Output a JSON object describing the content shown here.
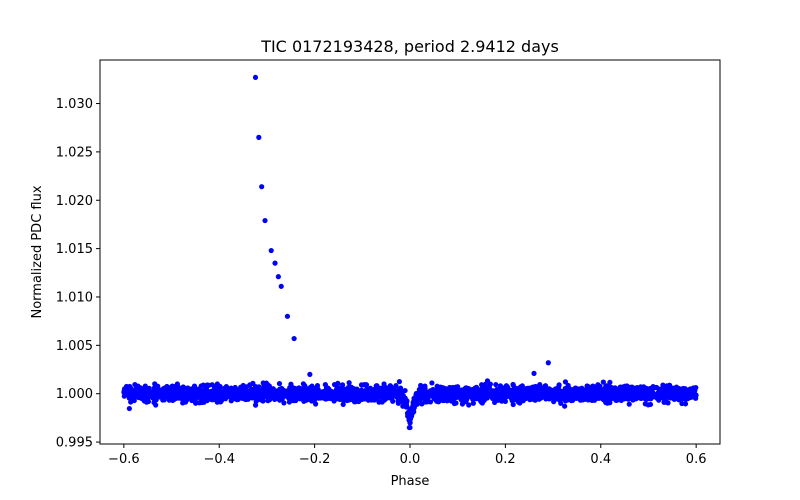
{
  "chart_data": {
    "type": "scatter",
    "title": "TIC 0172193428, period 2.9412 days",
    "xlabel": "Phase",
    "ylabel": "Normalized PDC flux",
    "xlim": [
      -0.65,
      0.65
    ],
    "ylim": [
      0.9948,
      1.0345
    ],
    "xticks": [
      -0.6,
      -0.4,
      -0.2,
      0.0,
      0.2,
      0.4,
      0.6
    ],
    "xtick_labels": [
      "−0.6",
      "−0.4",
      "−0.2",
      "0.0",
      "0.2",
      "0.4",
      "0.6"
    ],
    "yticks": [
      0.995,
      1.0,
      1.005,
      1.01,
      1.015,
      1.02,
      1.025,
      1.03
    ],
    "ytick_labels": [
      "0.995",
      "1.000",
      "1.005",
      "1.010",
      "1.015",
      "1.020",
      "1.025",
      "1.030"
    ],
    "grid": false,
    "marker_color": "#0000ff",
    "flare_points": [
      {
        "x": -0.324,
        "y": 1.0327
      },
      {
        "x": -0.317,
        "y": 1.0265
      },
      {
        "x": -0.311,
        "y": 1.0214
      },
      {
        "x": -0.304,
        "y": 1.0179
      },
      {
        "x": -0.291,
        "y": 1.0148
      },
      {
        "x": -0.283,
        "y": 1.0135
      },
      {
        "x": -0.276,
        "y": 1.0121
      },
      {
        "x": -0.27,
        "y": 1.0111
      },
      {
        "x": -0.257,
        "y": 1.008
      },
      {
        "x": -0.243,
        "y": 1.0057
      }
    ],
    "notable_points": [
      {
        "x": 0.29,
        "y": 1.0032
      },
      {
        "x": 0.26,
        "y": 1.0021
      },
      {
        "x": -0.21,
        "y": 1.002
      },
      {
        "x": 0.0,
        "y": 0.9965
      }
    ],
    "baseline": {
      "x_range": [
        -0.6,
        0.6
      ],
      "center": 1.0,
      "scatter": 0.0004,
      "n_points": 2600,
      "transit": {
        "phase": 0.0,
        "depth": 0.0025,
        "half_width": 0.025
      }
    }
  }
}
